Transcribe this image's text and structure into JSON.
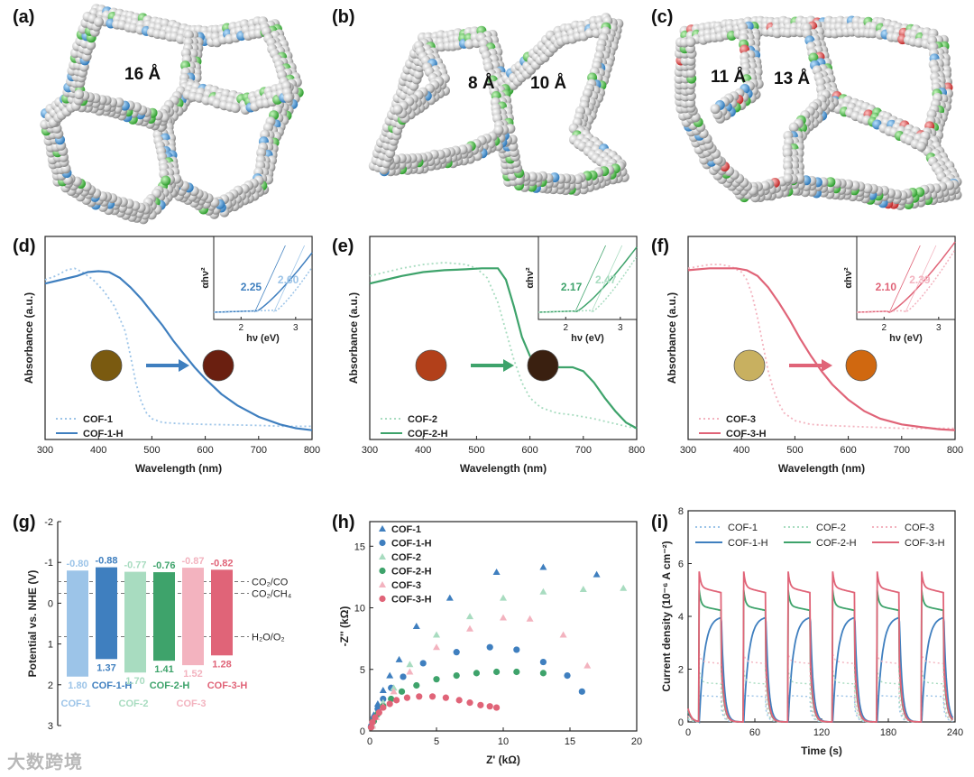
{
  "panel_labels": [
    "(a)",
    "(b)",
    "(c)",
    "(d)",
    "(e)",
    "(f)",
    "(g)",
    "(h)",
    "(i)"
  ],
  "pore_labels": {
    "a": [
      "16 Å"
    ],
    "b": [
      "8 Å",
      "10 Å"
    ],
    "c": [
      "11 Å",
      "13 Å"
    ]
  },
  "watermark": "大数跨境",
  "colors": {
    "cof1": "#3f7fbf",
    "cof1_light": "#9cc4e8",
    "cof2": "#3ea36b",
    "cof2_light": "#a8dcc0",
    "cof3": "#e06478",
    "cof3_light": "#f3b3bf",
    "atom_c": "#cfcfcf",
    "atom_n": "#3a8ccf",
    "atom_f": "#4cc04c",
    "atom_o": "#d84040"
  },
  "chart_data": [
    {
      "id": "d",
      "type": "line",
      "xlabel": "Wavelength (nm)",
      "ylabel": "Absorbance (a.u.)",
      "xlim": [
        300,
        800
      ],
      "xticks": [
        300,
        400,
        500,
        600,
        700,
        800
      ],
      "ylim": [
        0,
        1
      ],
      "series": [
        {
          "name": "COF-1",
          "style": "dotted",
          "color": "#9cc4e8",
          "x": [
            300,
            320,
            340,
            355,
            370,
            390,
            410,
            430,
            450,
            460,
            470,
            480,
            490,
            500,
            520,
            550,
            600,
            650,
            700,
            750,
            800
          ],
          "y": [
            0.82,
            0.84,
            0.87,
            0.88,
            0.86,
            0.82,
            0.76,
            0.68,
            0.55,
            0.42,
            0.28,
            0.18,
            0.12,
            0.09,
            0.07,
            0.065,
            0.06,
            0.058,
            0.055,
            0.05,
            0.05
          ]
        },
        {
          "name": "COF-1-H",
          "style": "solid",
          "color": "#3f7fbf",
          "x": [
            300,
            330,
            360,
            380,
            400,
            420,
            440,
            460,
            480,
            500,
            520,
            540,
            560,
            580,
            600,
            630,
            660,
            700,
            740,
            770,
            800
          ],
          "y": [
            0.8,
            0.82,
            0.84,
            0.86,
            0.865,
            0.86,
            0.83,
            0.78,
            0.72,
            0.65,
            0.58,
            0.5,
            0.43,
            0.36,
            0.3,
            0.22,
            0.16,
            0.1,
            0.06,
            0.04,
            0.03
          ]
        }
      ],
      "inset": {
        "xlabel": "hν (eV)",
        "ylabel": "αhν²",
        "xlim": [
          1.5,
          3.3
        ],
        "xticks": [
          2,
          3
        ],
        "annotations": [
          {
            "text": "2.25",
            "x": 2.25,
            "series": "COF-1-H"
          },
          {
            "text": "2.60",
            "x": 2.6,
            "series": "COF-1"
          }
        ]
      },
      "legend": [
        "COF-1",
        "COF-1-H"
      ]
    },
    {
      "id": "e",
      "type": "line",
      "xlabel": "Wavelength (nm)",
      "ylabel": "Absorbance (a.u.)",
      "xlim": [
        300,
        800
      ],
      "xticks": [
        300,
        400,
        500,
        600,
        700,
        800
      ],
      "ylim": [
        0,
        1
      ],
      "series": [
        {
          "name": "COF-2",
          "style": "dotted",
          "color": "#a8dcc0",
          "x": [
            300,
            330,
            360,
            400,
            440,
            480,
            500,
            520,
            540,
            555,
            570,
            585,
            600,
            620,
            650,
            680,
            700,
            720,
            750,
            780,
            800
          ],
          "y": [
            0.84,
            0.86,
            0.88,
            0.9,
            0.91,
            0.9,
            0.88,
            0.83,
            0.7,
            0.55,
            0.4,
            0.28,
            0.2,
            0.15,
            0.12,
            0.11,
            0.1,
            0.09,
            0.07,
            0.05,
            0.04
          ]
        },
        {
          "name": "COF-2-H",
          "style": "solid",
          "color": "#3ea36b",
          "x": [
            300,
            330,
            360,
            400,
            440,
            480,
            510,
            540,
            555,
            570,
            585,
            600,
            620,
            650,
            680,
            700,
            720,
            740,
            760,
            780,
            800
          ],
          "y": [
            0.8,
            0.82,
            0.84,
            0.86,
            0.87,
            0.875,
            0.88,
            0.88,
            0.82,
            0.68,
            0.52,
            0.42,
            0.37,
            0.36,
            0.36,
            0.34,
            0.28,
            0.2,
            0.13,
            0.07,
            0.04
          ]
        }
      ],
      "inset": {
        "xlabel": "hν (eV)",
        "ylabel": "αhν²",
        "xlim": [
          1.5,
          3.3
        ],
        "xticks": [
          2,
          3
        ],
        "annotations": [
          {
            "text": "2.17",
            "x": 2.17,
            "series": "COF-2-H"
          },
          {
            "text": "2.47",
            "x": 2.47,
            "series": "COF-2"
          }
        ]
      },
      "legend": [
        "COF-2",
        "COF-2-H"
      ]
    },
    {
      "id": "f",
      "type": "line",
      "xlabel": "Wavelength (nm)",
      "ylabel": "Absorbance (a.u.)",
      "xlim": [
        300,
        800
      ],
      "xticks": [
        300,
        400,
        500,
        600,
        700,
        800
      ],
      "ylim": [
        0,
        1
      ],
      "series": [
        {
          "name": "COF-3",
          "style": "dotted",
          "color": "#f3b3bf",
          "x": [
            300,
            320,
            340,
            360,
            380,
            400,
            410,
            420,
            430,
            440,
            450,
            460,
            470,
            480,
            500,
            530,
            560,
            600,
            650,
            700,
            800
          ],
          "y": [
            0.88,
            0.89,
            0.9,
            0.9,
            0.89,
            0.86,
            0.82,
            0.74,
            0.62,
            0.48,
            0.34,
            0.24,
            0.17,
            0.12,
            0.08,
            0.06,
            0.055,
            0.05,
            0.045,
            0.04,
            0.04
          ]
        },
        {
          "name": "COF-3-H",
          "style": "solid",
          "color": "#e06478",
          "x": [
            300,
            340,
            370,
            390,
            410,
            430,
            450,
            470,
            490,
            510,
            530,
            550,
            570,
            600,
            630,
            660,
            700,
            740,
            770,
            800
          ],
          "y": [
            0.87,
            0.88,
            0.88,
            0.88,
            0.87,
            0.84,
            0.78,
            0.7,
            0.61,
            0.51,
            0.42,
            0.34,
            0.27,
            0.19,
            0.13,
            0.09,
            0.06,
            0.045,
            0.035,
            0.03
          ]
        }
      ],
      "inset": {
        "xlabel": "hν (eV)",
        "ylabel": "αhν²",
        "xlim": [
          1.5,
          3.3
        ],
        "xticks": [
          2,
          3
        ],
        "annotations": [
          {
            "text": "2.10",
            "x": 2.1,
            "series": "COF-3-H"
          },
          {
            "text": "2.39",
            "x": 2.39,
            "series": "COF-3"
          }
        ]
      },
      "legend": [
        "COF-3",
        "COF-3-H"
      ]
    },
    {
      "id": "g",
      "type": "bar",
      "ylabel": "Potential vs. NHE (V)",
      "ylim": [
        -2,
        3
      ],
      "yticks": [
        -2,
        -1,
        0,
        1,
        2,
        3
      ],
      "ytick_labels": [
        "-2",
        "-1",
        "0",
        "1",
        "2",
        "3"
      ],
      "bars": [
        {
          "name": "COF-1",
          "top": -0.8,
          "bottom": 1.8,
          "top_label": "-0.80",
          "bottom_label": "1.80",
          "color": "#9cc4e8"
        },
        {
          "name": "COF-1-H",
          "top": -0.88,
          "bottom": 1.37,
          "top_label": "-0.88",
          "bottom_label": "1.37",
          "color": "#3f7fbf"
        },
        {
          "name": "COF-2",
          "top": -0.77,
          "bottom": 1.7,
          "top_label": "-0.77",
          "bottom_label": "1.70",
          "color": "#a8dcc0"
        },
        {
          "name": "COF-2-H",
          "top": -0.76,
          "bottom": 1.41,
          "top_label": "-0.76",
          "bottom_label": "1.41",
          "color": "#3ea36b"
        },
        {
          "name": "COF-3",
          "top": -0.87,
          "bottom": 1.52,
          "top_label": "-0.87",
          "bottom_label": "1.52",
          "color": "#f3b3bf"
        },
        {
          "name": "COF-3-H",
          "top": -0.82,
          "bottom": 1.28,
          "top_label": "-0.82",
          "bottom_label": "1.28",
          "color": "#e06478"
        }
      ],
      "reference_lines": [
        {
          "label": "CO₂/CO",
          "value": -0.53
        },
        {
          "label": "CO₂/CH₄",
          "value": -0.24
        },
        {
          "label": "H₂O/O₂",
          "value": 0.82
        }
      ]
    },
    {
      "id": "h",
      "type": "scatter",
      "xlabel": "Z' (kΩ)",
      "ylabel": "-Z'' (kΩ)",
      "xlim": [
        0,
        20
      ],
      "ylim": [
        0,
        17
      ],
      "xticks": [
        0,
        5,
        10,
        15,
        20
      ],
      "yticks": [
        0,
        5,
        10,
        15
      ],
      "series": [
        {
          "name": "COF-1",
          "marker": "triangle",
          "color": "#3f7fbf",
          "x": [
            0.1,
            0.3,
            0.6,
            1.0,
            1.5,
            2.2,
            3.5,
            6.0,
            9.5,
            13.0,
            17.0
          ],
          "y": [
            0.5,
            1.3,
            2.2,
            3.3,
            4.5,
            5.8,
            8.5,
            10.8,
            12.9,
            13.3,
            12.7
          ]
        },
        {
          "name": "COF-1-H",
          "marker": "circle",
          "color": "#3f7fbf",
          "x": [
            0.1,
            0.3,
            0.6,
            1.0,
            1.6,
            2.5,
            4.0,
            6.5,
            9.0,
            11.0,
            13.0,
            14.8,
            15.9
          ],
          "y": [
            0.4,
            1.0,
            1.8,
            2.6,
            3.5,
            4.4,
            5.5,
            6.4,
            6.8,
            6.6,
            5.6,
            4.5,
            3.2
          ]
        },
        {
          "name": "COF-2",
          "marker": "triangle",
          "color": "#a8dcc0",
          "x": [
            0.2,
            0.5,
            1.0,
            1.8,
            3.0,
            5.0,
            7.5,
            10.0,
            13.0,
            16.0,
            19.0
          ],
          "y": [
            0.5,
            1.3,
            2.3,
            3.5,
            5.4,
            7.8,
            9.3,
            10.8,
            11.3,
            11.5,
            11.6
          ]
        },
        {
          "name": "COF-2-H",
          "marker": "circle",
          "color": "#3ea36b",
          "x": [
            0.1,
            0.3,
            0.6,
            1.0,
            1.6,
            2.4,
            3.5,
            5.0,
            6.5,
            8.0,
            9.5,
            11.0,
            13.0
          ],
          "y": [
            0.3,
            0.8,
            1.4,
            2.0,
            2.6,
            3.2,
            3.7,
            4.2,
            4.5,
            4.7,
            4.8,
            4.8,
            4.7
          ]
        },
        {
          "name": "COF-3",
          "marker": "triangle",
          "color": "#f3b3bf",
          "x": [
            0.2,
            0.5,
            1.0,
            1.8,
            3.0,
            5.0,
            7.5,
            10.0,
            12.0,
            14.5,
            16.3
          ],
          "y": [
            0.4,
            1.1,
            2.0,
            3.2,
            4.8,
            6.8,
            8.3,
            9.2,
            9.1,
            7.8,
            5.3
          ]
        },
        {
          "name": "COF-3-H",
          "marker": "circle",
          "color": "#e06478",
          "x": [
            0.1,
            0.2,
            0.4,
            0.7,
            1.0,
            1.5,
            2.0,
            2.8,
            3.7,
            4.7,
            5.7,
            6.7,
            7.5,
            8.3,
            9.0,
            9.5
          ],
          "y": [
            0.3,
            0.7,
            1.1,
            1.5,
            1.9,
            2.2,
            2.5,
            2.7,
            2.8,
            2.8,
            2.7,
            2.5,
            2.3,
            2.1,
            2.0,
            1.9
          ]
        }
      ],
      "legend": [
        "COF-1",
        "COF-1-H",
        "COF-2",
        "COF-2-H",
        "COF-3",
        "COF-3-H"
      ]
    },
    {
      "id": "i",
      "type": "line",
      "xlabel": "Time (s)",
      "ylabel": "Current density (10⁻⁶ A cm⁻²)",
      "xlim": [
        0,
        240
      ],
      "ylim": [
        0,
        8
      ],
      "xticks": [
        0,
        60,
        120,
        180,
        240
      ],
      "yticks": [
        0,
        2,
        4,
        6,
        8
      ],
      "on_off_cycle": {
        "period_s": 40,
        "on_start_s": 10,
        "on_duration_s": 20
      },
      "series": [
        {
          "name": "COF-1",
          "style": "dotted",
          "color": "#9cc4e8",
          "on_level": 1.0,
          "spike": 0
        },
        {
          "name": "COF-1-H",
          "style": "solid",
          "color": "#3f7fbf",
          "on_level": 4.0,
          "spike": 0,
          "rising": true
        },
        {
          "name": "COF-2",
          "style": "dotted",
          "color": "#a8dcc0",
          "on_level": 1.5,
          "spike": 0.5
        },
        {
          "name": "COF-2-H",
          "style": "solid",
          "color": "#3ea36b",
          "on_level": 4.4,
          "spike": 0.6
        },
        {
          "name": "COF-3",
          "style": "dotted",
          "color": "#f3b3bf",
          "on_level": 2.3,
          "spike": 0.3
        },
        {
          "name": "COF-3-H",
          "style": "solid",
          "color": "#e06478",
          "on_level": 5.1,
          "spike": 0.6
        }
      ],
      "legend": [
        "COF-1",
        "COF-2",
        "COF-3",
        "COF-1-H",
        "COF-2-H",
        "COF-3-H"
      ]
    }
  ]
}
